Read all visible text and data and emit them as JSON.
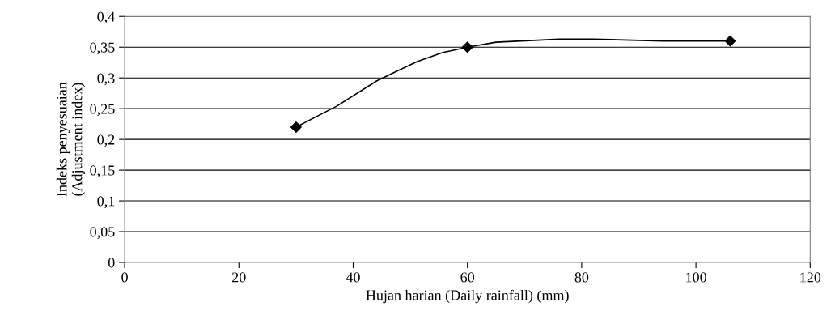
{
  "chart_data": {
    "type": "line",
    "xlabel": "Hujan harian (Daily rainfall) (mm)",
    "ylabel": "Indeks penyesuaian\n(Adjustment index)",
    "series": [
      {
        "color": "#000000",
        "marker": "none",
        "x": [
          30,
          37.1,
          44.1,
          47.9,
          51.3,
          55.6,
          60,
          65,
          76,
          82.2,
          94.2,
          106
        ],
        "values": [
          0.22,
          0.254,
          0.295,
          0.312,
          0.327,
          0.341,
          0.35,
          0.358,
          0.363,
          0.363,
          0.36,
          0.36
        ]
      },
      {
        "type": "scatter",
        "marker": "diamond",
        "color": "#000000",
        "x": [
          30,
          60,
          106
        ],
        "values": [
          0.22,
          0.35,
          0.36
        ]
      }
    ],
    "line_style": "solid",
    "grid": "y",
    "xlim": [
      0,
      120
    ],
    "xticks": [
      0,
      20,
      40,
      60,
      80,
      100,
      120
    ],
    "ylim": [
      0,
      0.4
    ],
    "yticks": [
      0,
      {
        "value": 0.05,
        "label": "0,05"
      },
      {
        "value": 0.1,
        "label": "0,1"
      },
      {
        "value": 0.15,
        "label": "0,15"
      },
      {
        "value": 0.2,
        "label": "0,2"
      },
      {
        "value": 0.25,
        "label": "0,25"
      },
      {
        "value": 0.3,
        "label": "0,3"
      },
      {
        "value": 0.35,
        "label": "0,35"
      },
      {
        "value": 0.4,
        "label": "0,4"
      }
    ]
  }
}
